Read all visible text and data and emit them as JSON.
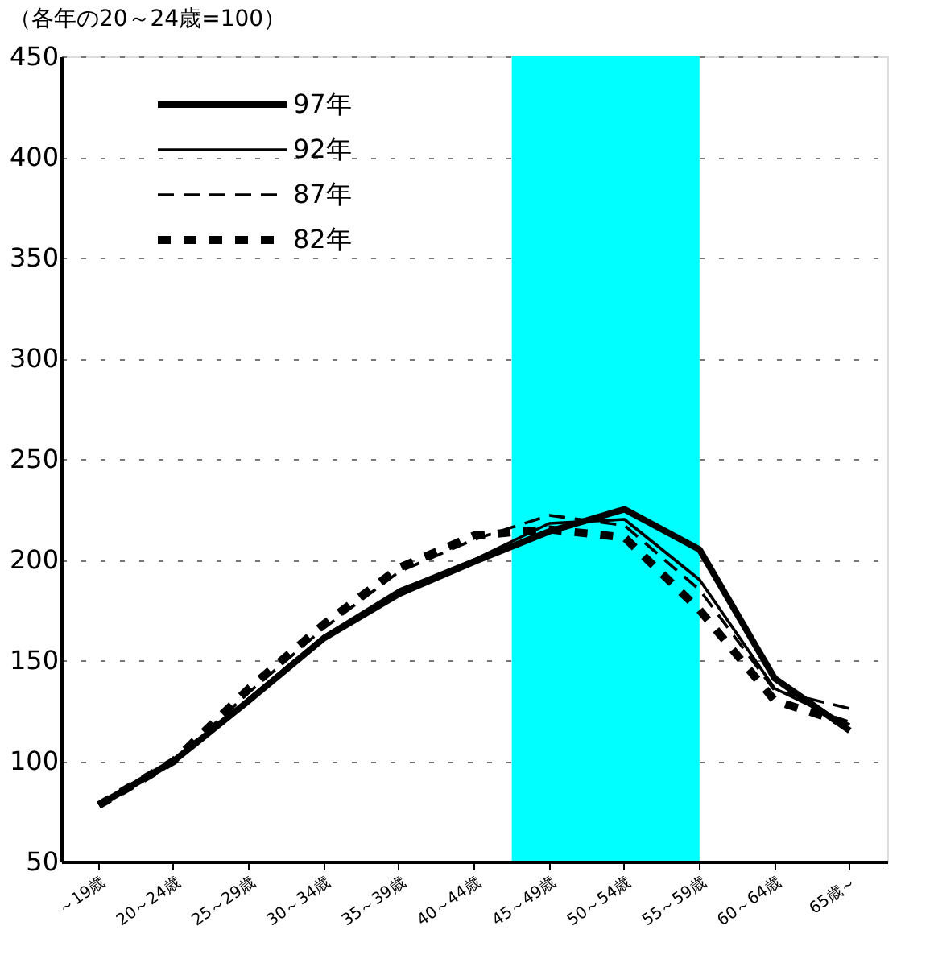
{
  "chart_data": {
    "type": "line",
    "title": "（各年の20～24歳=100）",
    "categories": [
      "～19歳",
      "20～24歳",
      "25～29歳",
      "30～34歳",
      "35～39歳",
      "40～44歳",
      "45～49歳",
      "50～54歳",
      "55～59歳",
      "60～64歳",
      "65歳～"
    ],
    "series": [
      {
        "name": "97年",
        "color": "#000000",
        "line_style": "solid",
        "values": [
          78,
          100,
          130,
          161,
          183,
          199,
          214,
          225,
          205,
          141,
          115
        ]
      },
      {
        "name": "92年",
        "color": "#000000",
        "line_style": "solid",
        "values": [
          79,
          100,
          131,
          162,
          185,
          200,
          218,
          220,
          190,
          136,
          118
        ]
      },
      {
        "name": "87年",
        "color": "#000000",
        "line_style": "dashed",
        "values": [
          79,
          100,
          134,
          166,
          194,
          210,
          222,
          217,
          185,
          135,
          126
        ]
      },
      {
        "name": "82年",
        "color": "#000000",
        "line_style": "dotted",
        "values": [
          78,
          100,
          136,
          168,
          196,
          212,
          215,
          211,
          175,
          130,
          118
        ]
      }
    ],
    "ylim": [
      50,
      450
    ],
    "yticks": [
      50,
      100,
      150,
      200,
      250,
      300,
      350,
      400,
      450
    ],
    "bands": [
      {
        "axis": "x",
        "from": "45～49歳",
        "to": "55～59歳",
        "color": "#00ffff"
      }
    ],
    "grid": "y",
    "legend": "top left",
    "marker": "none"
  }
}
